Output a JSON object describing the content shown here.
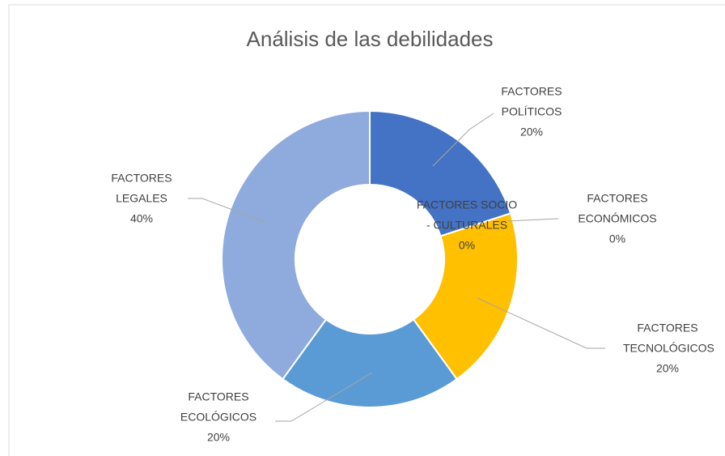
{
  "chart_data": {
    "type": "donut",
    "title": "Análisis de las debilidades",
    "categories": [
      "FACTORES POLÍTICOS",
      "FACTORES ECONÓMICOS",
      "FACTORES SOCIO - CULTURALES",
      "FACTORES TECNOLÓGICOS",
      "FACTORES ECOLÓGICOS",
      "FACTORES LEGALES"
    ],
    "values": [
      20,
      0,
      0,
      20,
      20,
      40
    ],
    "value_labels": [
      "20%",
      "0%",
      "0%",
      "20%",
      "20%",
      "40%"
    ],
    "colors": [
      "#4472c4",
      "#ed7d31",
      "#a5a5a5",
      "#ffc000",
      "#5b9bd5",
      "#8faadc"
    ]
  }
}
